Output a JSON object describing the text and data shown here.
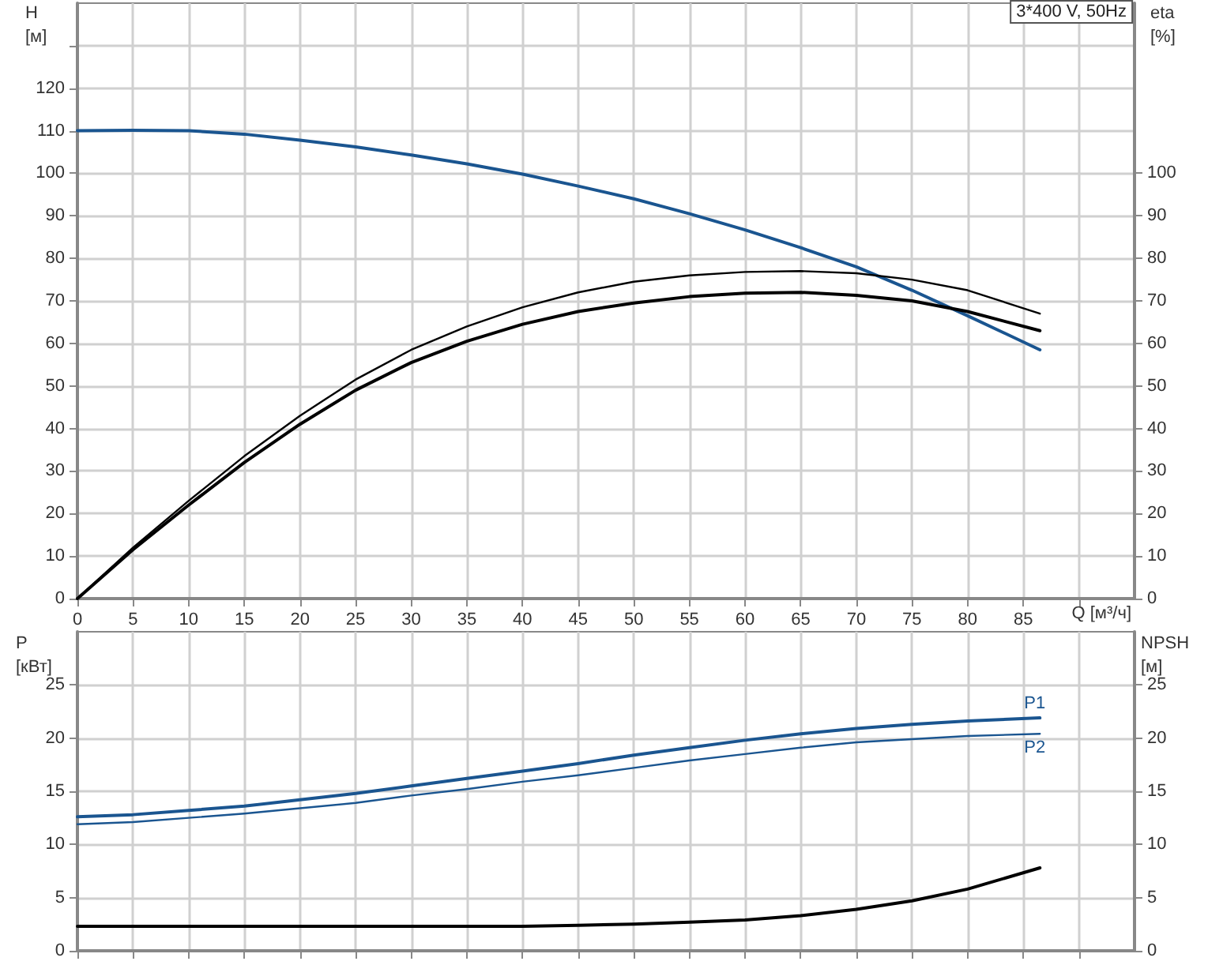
{
  "chart_data": [
    {
      "type": "line",
      "ylabel": "H [м]",
      "y2label": "eta [%]",
      "xlabel": "Q [м³/ч]",
      "annotations": [
        "3*400 V, 50Hz"
      ],
      "xlim": [
        0,
        95
      ],
      "xticks": [
        0,
        5,
        10,
        15,
        20,
        25,
        30,
        35,
        40,
        45,
        50,
        55,
        60,
        65,
        70,
        75,
        80,
        85,
        {
          "value": 90,
          "label": null
        }
      ],
      "ylim": [
        0,
        140
      ],
      "yticks": [
        0,
        10,
        20,
        30,
        40,
        50,
        60,
        70,
        80,
        90,
        100,
        110,
        120,
        {
          "value": 130,
          "label": null
        }
      ],
      "y2lim": [
        0,
        140
      ],
      "y2ticks": [
        0,
        10,
        20,
        30,
        40,
        50,
        60,
        70,
        80,
        90,
        100
      ],
      "grid": true,
      "marker": "none",
      "line_style": "solid",
      "legend": false,
      "x": [
        0,
        5,
        10,
        15,
        20,
        25,
        30,
        35,
        40,
        45,
        50,
        55,
        60,
        65,
        70,
        75,
        80,
        86.5
      ],
      "series": [
        {
          "color": "#1a5590",
          "values": [
            110,
            110.1,
            110,
            109.2,
            107.8,
            106.2,
            104.3,
            102.2,
            99.8,
            97,
            94,
            90.5,
            86.7,
            82.5,
            78,
            72.5,
            66.5,
            58.5
          ]
        },
        {
          "color": "#000000",
          "axis": "y2",
          "values": [
            0,
            12,
            23,
            33.5,
            43,
            51.5,
            58.5,
            64,
            68.5,
            72,
            74.5,
            76,
            76.8,
            77,
            76.5,
            75,
            72.5,
            67
          ]
        },
        {
          "color": "#000000",
          "axis": "y2",
          "values": [
            0,
            11.5,
            22,
            32,
            41,
            49,
            55.5,
            60.5,
            64.5,
            67.5,
            69.5,
            71,
            71.8,
            72,
            71.3,
            70,
            67.5,
            63
          ]
        }
      ]
    },
    {
      "type": "line",
      "ylabel": "P [кВт]",
      "y2label": "NPSH [м]",
      "xlim": [
        0,
        95
      ],
      "xticks": [
        0,
        5,
        10,
        15,
        20,
        25,
        30,
        35,
        40,
        45,
        50,
        55,
        60,
        65,
        70,
        75,
        80,
        85,
        90
      ],
      "ylim": [
        0,
        30
      ],
      "yticks": [
        0,
        5,
        10,
        15,
        20,
        25
      ],
      "y2lim": [
        0,
        30
      ],
      "y2ticks": [
        0,
        5,
        10,
        15,
        20,
        25
      ],
      "tick_labels": "y",
      "grid": true,
      "marker": "none",
      "line_style": "solid",
      "legend": false,
      "x": [
        0,
        5,
        10,
        15,
        20,
        25,
        30,
        35,
        40,
        45,
        50,
        55,
        60,
        65,
        70,
        75,
        80,
        86.5
      ],
      "series": [
        {
          "name": "P1",
          "color": "#1a5590",
          "values": [
            12.6,
            12.8,
            13.2,
            13.6,
            14.2,
            14.8,
            15.5,
            16.2,
            16.9,
            17.6,
            18.4,
            19.1,
            19.8,
            20.4,
            20.9,
            21.3,
            21.6,
            21.9
          ]
        },
        {
          "name": "P2",
          "color": "#1a5590",
          "values": [
            11.9,
            12.1,
            12.5,
            12.9,
            13.4,
            13.9,
            14.6,
            15.2,
            15.9,
            16.5,
            17.2,
            17.9,
            18.5,
            19.1,
            19.6,
            19.9,
            20.2,
            20.4
          ]
        },
        {
          "color": "#000000",
          "axis": "y2",
          "values": [
            2.3,
            2.3,
            2.3,
            2.3,
            2.3,
            2.3,
            2.3,
            2.3,
            2.3,
            2.4,
            2.5,
            2.7,
            2.9,
            3.3,
            3.9,
            4.7,
            5.8,
            7.8
          ]
        }
      ]
    }
  ]
}
